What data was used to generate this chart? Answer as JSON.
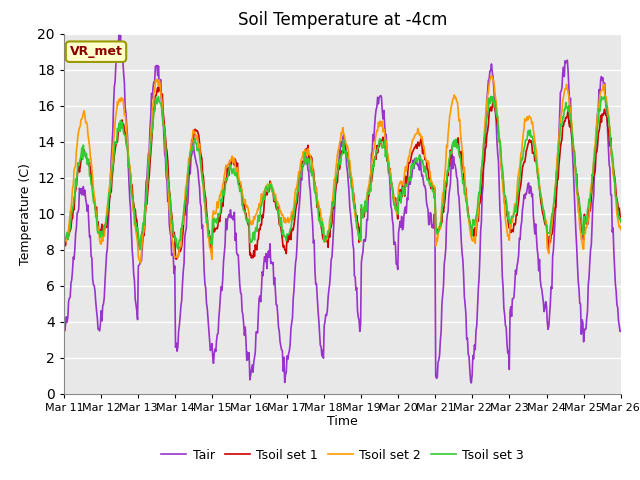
{
  "title": "Soil Temperature at -4cm",
  "xlabel": "Time",
  "ylabel": "Temperature (C)",
  "ylim": [
    0,
    20
  ],
  "x_tick_labels": [
    "Mar 11",
    "Mar 12",
    "Mar 13",
    "Mar 14",
    "Mar 15",
    "Mar 16",
    "Mar 17",
    "Mar 18",
    "Mar 19",
    "Mar 20",
    "Mar 21",
    "Mar 22",
    "Mar 23",
    "Mar 24",
    "Mar 25",
    "Mar 26"
  ],
  "legend_labels": [
    "Tair",
    "Tsoil set 1",
    "Tsoil set 2",
    "Tsoil set 3"
  ],
  "legend_colors": [
    "#9933cc",
    "#cc0000",
    "#ff9900",
    "#33cc33"
  ],
  "annotation_text": "VR_met",
  "annotation_color": "#8b0000",
  "annotation_bg": "#ffffcc",
  "annotation_edge": "#999900",
  "fig_bg_color": "#ffffff",
  "plot_bg_color": "#e8e8e8",
  "grid_color": "#ffffff",
  "title_fontsize": 12,
  "label_fontsize": 9,
  "tick_fontsize": 8,
  "line_width": 1.2
}
